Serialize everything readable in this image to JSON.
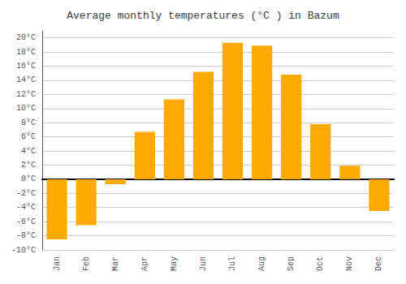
{
  "chart_data": {
    "type": "bar",
    "title": "Average monthly temperatures (°C ) in Bazum",
    "categories": [
      "Jan",
      "Feb",
      "Mar",
      "Apr",
      "May",
      "Jun",
      "Jul",
      "Aug",
      "Sep",
      "Oct",
      "Nov",
      "Dec"
    ],
    "values": [
      -8.5,
      -6.5,
      -0.7,
      6.7,
      11.3,
      15.2,
      19.3,
      18.9,
      14.8,
      7.8,
      1.9,
      -4.5
    ],
    "color": "#FFAA00",
    "ylim": [
      -10,
      21
    ],
    "yticks": [
      {
        "value": -10,
        "label": "-10°C"
      },
      {
        "value": -8,
        "label": "-8°C"
      },
      {
        "value": -6,
        "label": "-6°C"
      },
      {
        "value": -4,
        "label": "-4°C"
      },
      {
        "value": -2,
        "label": "-2°C"
      },
      {
        "value": 0,
        "label": "0°C"
      },
      {
        "value": 2,
        "label": "2°C"
      },
      {
        "value": 4,
        "label": "4°C"
      },
      {
        "value": 6,
        "label": "6°C"
      },
      {
        "value": 8,
        "label": "8°C"
      },
      {
        "value": 10,
        "label": "10°C"
      },
      {
        "value": 12,
        "label": "12°C"
      },
      {
        "value": 14,
        "label": "14°C"
      },
      {
        "value": 16,
        "label": "16°C"
      },
      {
        "value": 18,
        "label": "18°C"
      },
      {
        "value": 20,
        "label": "20°C"
      }
    ],
    "grid": true
  }
}
